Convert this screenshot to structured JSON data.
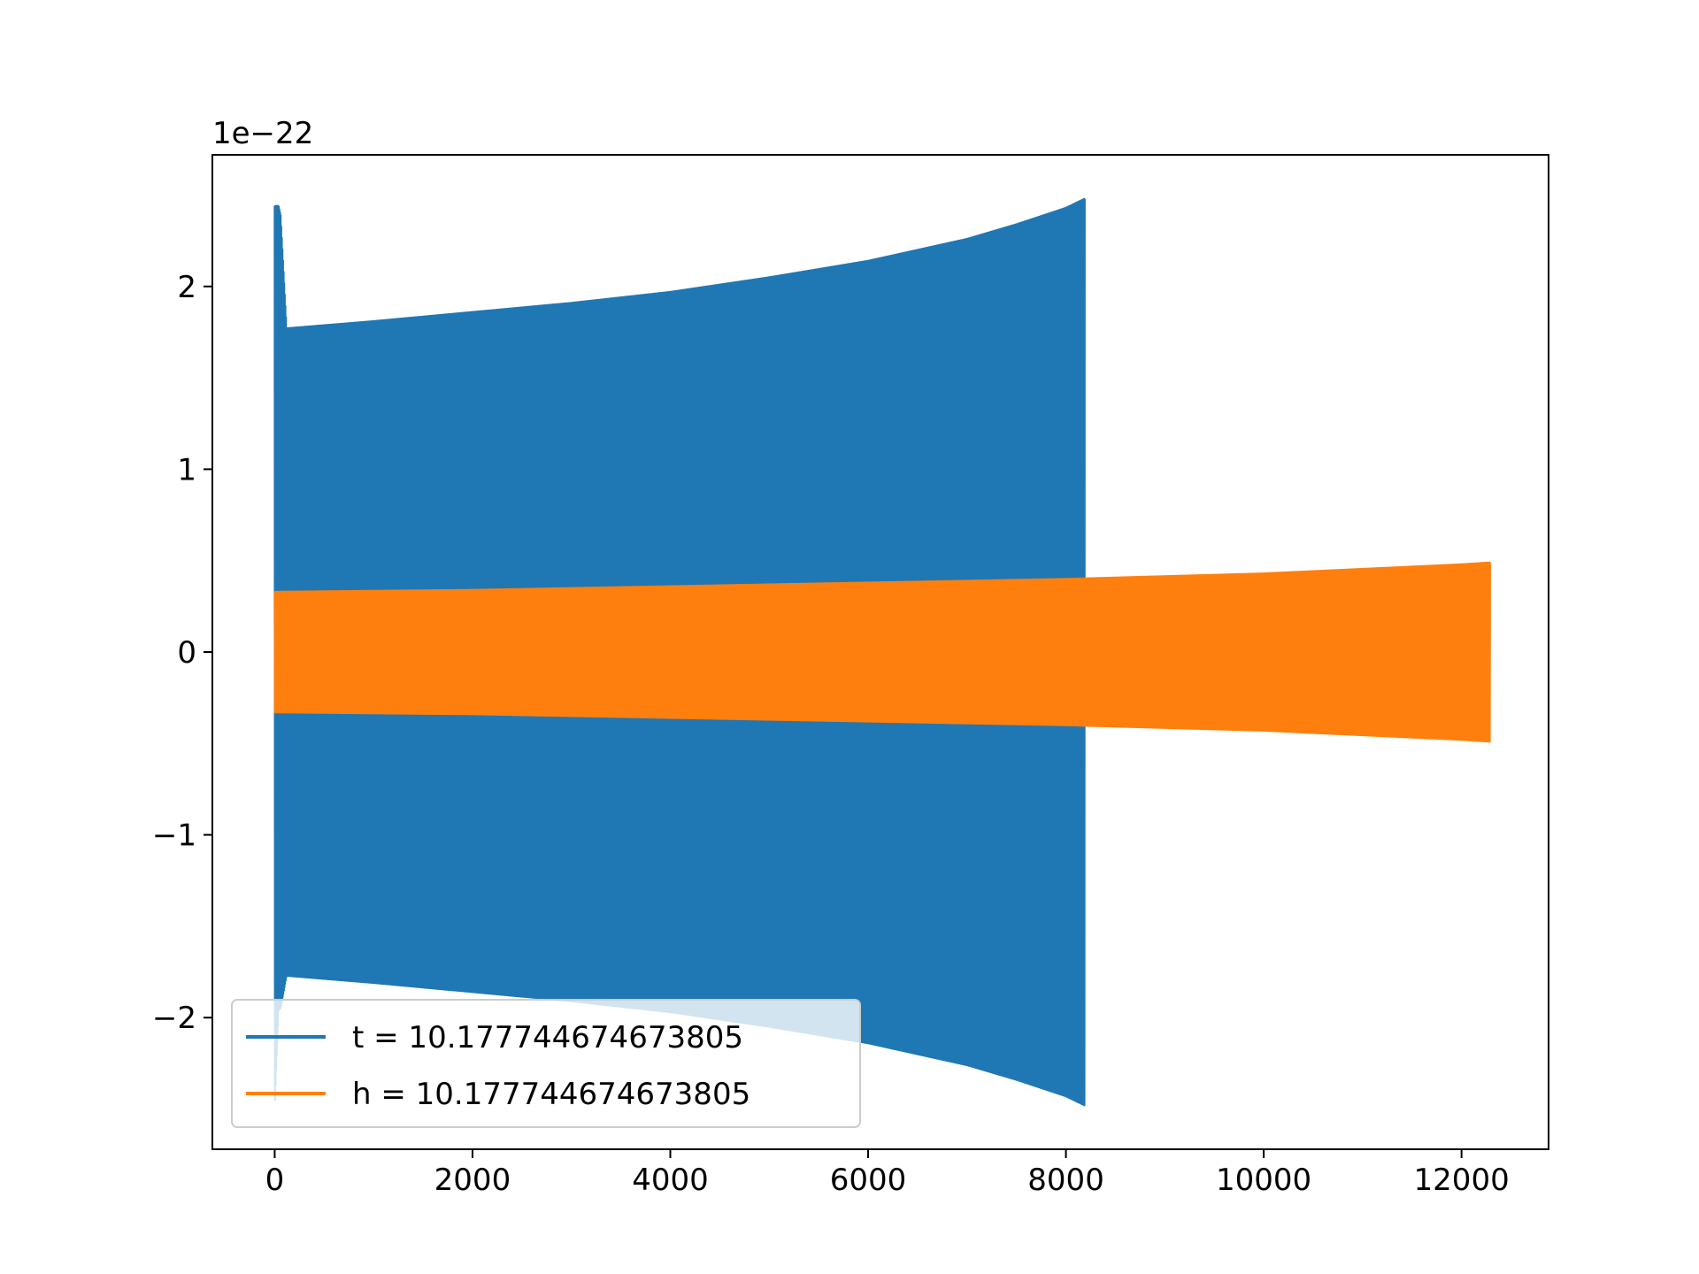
{
  "chart_data": {
    "type": "line",
    "title": "",
    "xlabel": "",
    "ylabel": "",
    "offset_text": "1e−22",
    "xlim": [
      -630,
      12880
    ],
    "ylim": [
      -2.72,
      2.72
    ],
    "x_ticks": [
      0,
      2000,
      4000,
      6000,
      8000,
      10000,
      12000
    ],
    "x_tick_labels": [
      "0",
      "2000",
      "4000",
      "6000",
      "8000",
      "10000",
      "12000"
    ],
    "y_ticks": [
      -2,
      -1,
      0,
      1,
      2
    ],
    "y_tick_labels": [
      "−2",
      "−1",
      "0",
      "1",
      "2"
    ],
    "grid": false,
    "legend_position": "lower-left",
    "series": [
      {
        "name": "t = 10.177744674673805",
        "color": "#1f77b4",
        "kind": "oscillation",
        "x_start": 0,
        "x_end": 8190,
        "envelope_x": [
          0,
          100,
          1000,
          2000,
          3000,
          4000,
          5000,
          6000,
          7000,
          7500,
          8000,
          8190
        ],
        "envelope_amp": [
          1.77,
          1.77,
          1.81,
          1.86,
          1.91,
          1.97,
          2.05,
          2.14,
          2.26,
          2.34,
          2.43,
          2.48
        ],
        "initial_spike_x": [
          0,
          40,
          60,
          120
        ],
        "initial_spike_max": [
          2.44,
          2.44,
          2.39,
          1.77
        ],
        "initial_spike_min": [
          -2.49,
          -1.95,
          -1.95,
          -1.77
        ]
      },
      {
        "name": "h = 10.177744674673805",
        "color": "#ff7f0e",
        "kind": "oscillation",
        "x_start": 0,
        "x_end": 12290,
        "envelope_x": [
          0,
          50,
          1000,
          2000,
          4000,
          6000,
          8000,
          10000,
          12000,
          12290
        ],
        "envelope_amp": [
          0.33,
          0.33,
          0.335,
          0.34,
          0.36,
          0.38,
          0.4,
          0.43,
          0.48,
          0.49
        ]
      }
    ]
  }
}
